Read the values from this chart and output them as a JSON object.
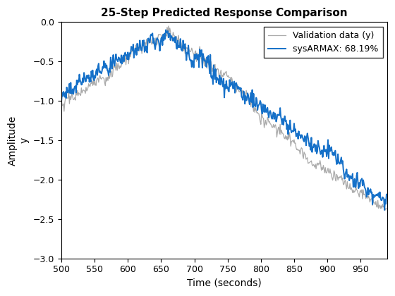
{
  "title": "25-Step Predicted Response Comparison",
  "xlabel": "Time (seconds)",
  "ylabel_top": "Amplitude",
  "ylabel_bot": "y",
  "xlim": [
    500,
    990
  ],
  "ylim": [
    -3,
    0
  ],
  "yticks": [
    0,
    -0.5,
    -1.0,
    -1.5,
    -2.0,
    -2.5,
    -3.0
  ],
  "xticks": [
    500,
    550,
    600,
    650,
    700,
    750,
    800,
    850,
    900,
    950
  ],
  "val_color": "#aaaaaa",
  "armax_color": "#1570c8",
  "val_label": "Validation data (y)",
  "armax_label": "sysARMAX: 68.19%",
  "val_lw": 0.9,
  "armax_lw": 1.4,
  "legend_loc": "upper right",
  "background_color": "#ffffff",
  "seed": 17
}
